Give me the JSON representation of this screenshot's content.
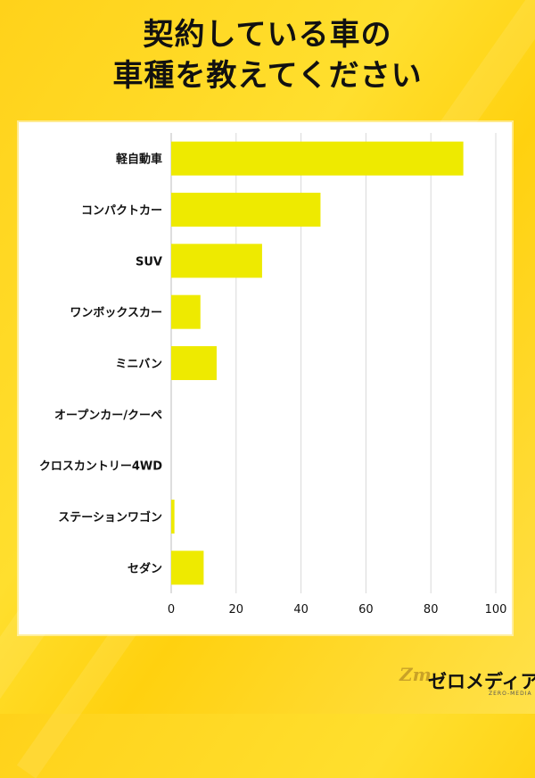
{
  "title": {
    "line1": "契約している車の",
    "line2": "車種を教えてください"
  },
  "colors": {
    "background": "#ffd81f",
    "bar": "#eeea00",
    "grid": "#d9d9d9",
    "text": "#111111"
  },
  "chart_data": {
    "type": "bar",
    "orientation": "horizontal",
    "categories": [
      "軽自動車",
      "コンパクトカー",
      "SUV",
      "ワンボックスカー",
      "ミニバン",
      "オープンカー/クーペ",
      "クロスカントリー4WD",
      "ステーションワゴン",
      "セダン"
    ],
    "values": [
      90,
      46,
      28,
      9,
      14,
      0,
      0,
      1,
      10
    ],
    "xlim": [
      0,
      100
    ],
    "xticks": [
      0,
      20,
      40,
      60,
      80,
      100
    ],
    "grid": true,
    "legend": false,
    "title": "",
    "xlabel": "",
    "ylabel": ""
  },
  "logo": {
    "mark": "Zm",
    "text": "ゼロメディア",
    "sub": "ZERO-MEDIA"
  }
}
